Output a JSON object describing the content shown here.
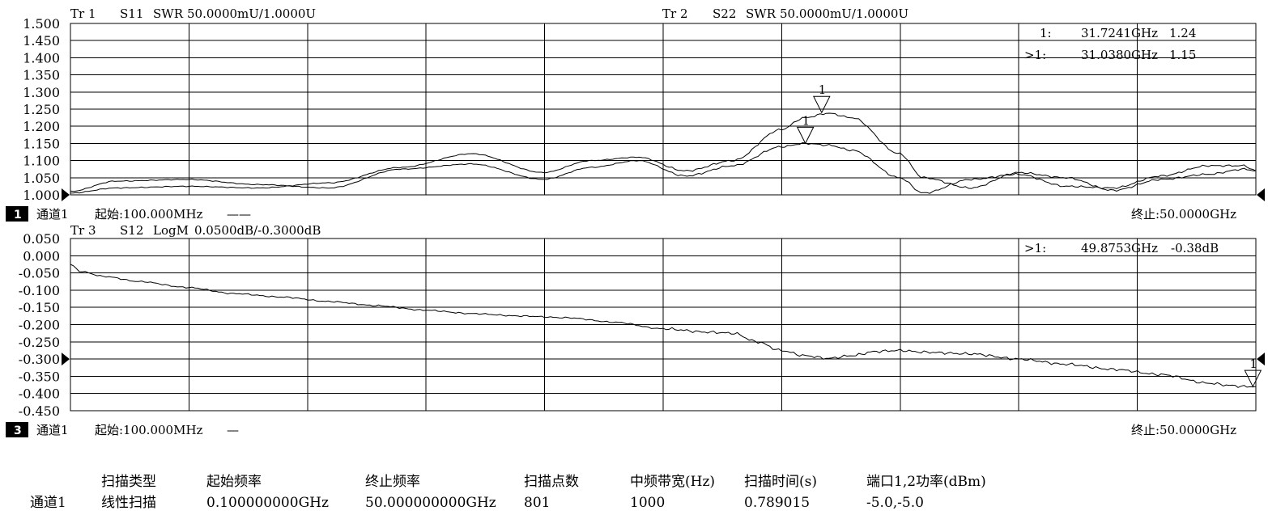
{
  "chart_data": [
    {
      "type": "line",
      "traces": [
        {
          "label": "Tr 1",
          "param": "S11",
          "format": "SWR",
          "scale": "50.0000mU/1.0000U"
        },
        {
          "label": "Tr 2",
          "param": "S22",
          "format": "SWR",
          "scale": "50.0000mU/1.0000U"
        }
      ],
      "ylim": [
        1.0,
        1.5
      ],
      "yticks": [
        "1.500",
        "1.450",
        "1.400",
        "1.350",
        "1.300",
        "1.250",
        "1.200",
        "1.150",
        "1.100",
        "1.050",
        "1.000"
      ],
      "xlim_ghz": [
        0.1,
        50.0
      ],
      "channel_badge": "1",
      "channel_label": "通道1",
      "start_label": "起始:100.000MHz",
      "start_suffix": "——",
      "stop_label": "终止:50.0000GHz",
      "marker_readouts": [
        {
          "label": "1:",
          "freq": "31.7241GHz",
          "value": "1.24"
        },
        {
          "label": ">1:",
          "freq": "31.0380GHz",
          "value": "1.15"
        }
      ],
      "markers": [
        {
          "name": "1",
          "x_ghz": 31.7241,
          "y": 1.24
        },
        {
          "name": "1",
          "x_ghz": 31.038,
          "y": 1.15
        }
      ],
      "series": [
        {
          "name": "S11",
          "x": [
            0.1,
            2,
            5,
            8,
            11,
            14,
            17,
            20,
            22,
            24,
            26,
            28,
            30,
            31,
            32,
            33,
            35,
            36,
            38,
            40,
            42,
            44,
            46,
            48,
            49.5,
            50
          ],
          "y": [
            1.005,
            1.02,
            1.025,
            1.02,
            1.035,
            1.08,
            1.12,
            1.065,
            1.1,
            1.11,
            1.07,
            1.1,
            1.19,
            1.225,
            1.238,
            1.225,
            1.12,
            1.05,
            1.02,
            1.065,
            1.05,
            1.013,
            1.045,
            1.06,
            1.075,
            1.07
          ]
        },
        {
          "name": "S22",
          "x": [
            0.1,
            2,
            5,
            8,
            11,
            14,
            17,
            20,
            22,
            24,
            26,
            28,
            30,
            31,
            32,
            33,
            35,
            36,
            38,
            40,
            42,
            44,
            46,
            48,
            49.5,
            50
          ],
          "y": [
            1.01,
            1.04,
            1.045,
            1.03,
            1.02,
            1.075,
            1.09,
            1.045,
            1.08,
            1.1,
            1.055,
            1.085,
            1.14,
            1.15,
            1.145,
            1.13,
            1.05,
            1.005,
            1.045,
            1.06,
            1.025,
            1.02,
            1.055,
            1.085,
            1.085,
            1.07
          ]
        }
      ]
    },
    {
      "type": "line",
      "traces": [
        {
          "label": "Tr 3",
          "param": "S12",
          "format": "LogM",
          "scale": "0.0500dB/-0.3000dB"
        }
      ],
      "ylim": [
        -0.45,
        0.05
      ],
      "yticks": [
        "0.050",
        "0.000",
        "-0.050",
        "-0.100",
        "-0.150",
        "-0.200",
        "-0.250",
        "-0.300",
        "-0.350",
        "-0.400",
        "-0.450"
      ],
      "xlim_ghz": [
        0.1,
        50.0
      ],
      "channel_badge": "3",
      "channel_label": "通道1",
      "start_label": "起始:100.000MHz",
      "start_suffix": "—",
      "stop_label": "终止:50.0000GHz",
      "marker_readouts": [
        {
          "label": ">1:",
          "freq": "49.8753GHz",
          "value": "-0.38dB"
        }
      ],
      "markers": [
        {
          "name": "1",
          "x_ghz": 49.8753,
          "y": -0.38
        }
      ],
      "series": [
        {
          "name": "S12",
          "x": [
            0.1,
            0.5,
            1.5,
            3,
            5,
            7,
            9,
            11,
            13,
            15,
            17,
            19,
            21,
            23,
            25,
            27,
            28,
            29,
            30,
            31,
            32,
            33,
            34,
            35,
            36,
            38,
            40,
            42,
            44,
            46,
            48,
            49,
            49.5,
            50
          ],
          "y": [
            -0.025,
            -0.045,
            -0.06,
            -0.075,
            -0.092,
            -0.11,
            -0.12,
            -0.133,
            -0.145,
            -0.158,
            -0.168,
            -0.175,
            -0.18,
            -0.193,
            -0.212,
            -0.222,
            -0.225,
            -0.25,
            -0.275,
            -0.29,
            -0.298,
            -0.29,
            -0.278,
            -0.275,
            -0.28,
            -0.285,
            -0.3,
            -0.315,
            -0.33,
            -0.345,
            -0.37,
            -0.377,
            -0.38,
            -0.38
          ]
        }
      ]
    }
  ],
  "table": {
    "headers": [
      "扫描类型",
      "起始频率",
      "终止频率",
      "扫描点数",
      "中频带宽(Hz)",
      "扫描时间(s)",
      "端口1,2功率(dBm)"
    ],
    "row_label": "通道1",
    "values": [
      "线性扫描",
      "0.100000000GHz",
      "50.000000000GHz",
      "801",
      "1000",
      "0.789015",
      "-5.0,-5.0"
    ]
  }
}
